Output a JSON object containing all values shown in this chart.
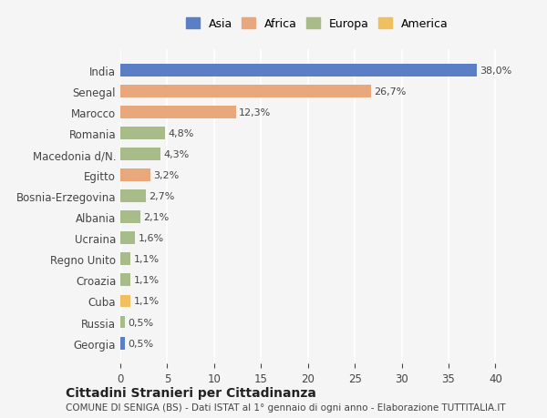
{
  "countries": [
    "India",
    "Senegal",
    "Marocco",
    "Romania",
    "Macedonia d/N.",
    "Egitto",
    "Bosnia-Erzegovina",
    "Albania",
    "Ucraina",
    "Regno Unito",
    "Croazia",
    "Cuba",
    "Russia",
    "Georgia"
  ],
  "values": [
    38.0,
    26.7,
    12.3,
    4.8,
    4.3,
    3.2,
    2.7,
    2.1,
    1.6,
    1.1,
    1.1,
    1.1,
    0.5,
    0.5
  ],
  "labels": [
    "38,0%",
    "26,7%",
    "12,3%",
    "4,8%",
    "4,3%",
    "3,2%",
    "2,7%",
    "2,1%",
    "1,6%",
    "1,1%",
    "1,1%",
    "1,1%",
    "0,5%",
    "0,5%"
  ],
  "continents": [
    "Asia",
    "Africa",
    "Africa",
    "Europa",
    "Europa",
    "Africa",
    "Europa",
    "Europa",
    "Europa",
    "Europa",
    "Europa",
    "America",
    "Europa",
    "Asia"
  ],
  "colors": {
    "Asia": "#5b7fc4",
    "Africa": "#e8a87c",
    "Europa": "#a8bc8a",
    "America": "#f0c060"
  },
  "legend_order": [
    "Asia",
    "Africa",
    "Europa",
    "America"
  ],
  "title": "Cittadini Stranieri per Cittadinanza",
  "subtitle": "COMUNE DI SENIGA (BS) - Dati ISTAT al 1° gennaio di ogni anno - Elaborazione TUTTITALIA.IT",
  "xlim": [
    0,
    42
  ],
  "xticks": [
    0,
    5,
    10,
    15,
    20,
    25,
    30,
    35,
    40
  ],
  "background_color": "#f5f5f5",
  "bar_height": 0.6
}
